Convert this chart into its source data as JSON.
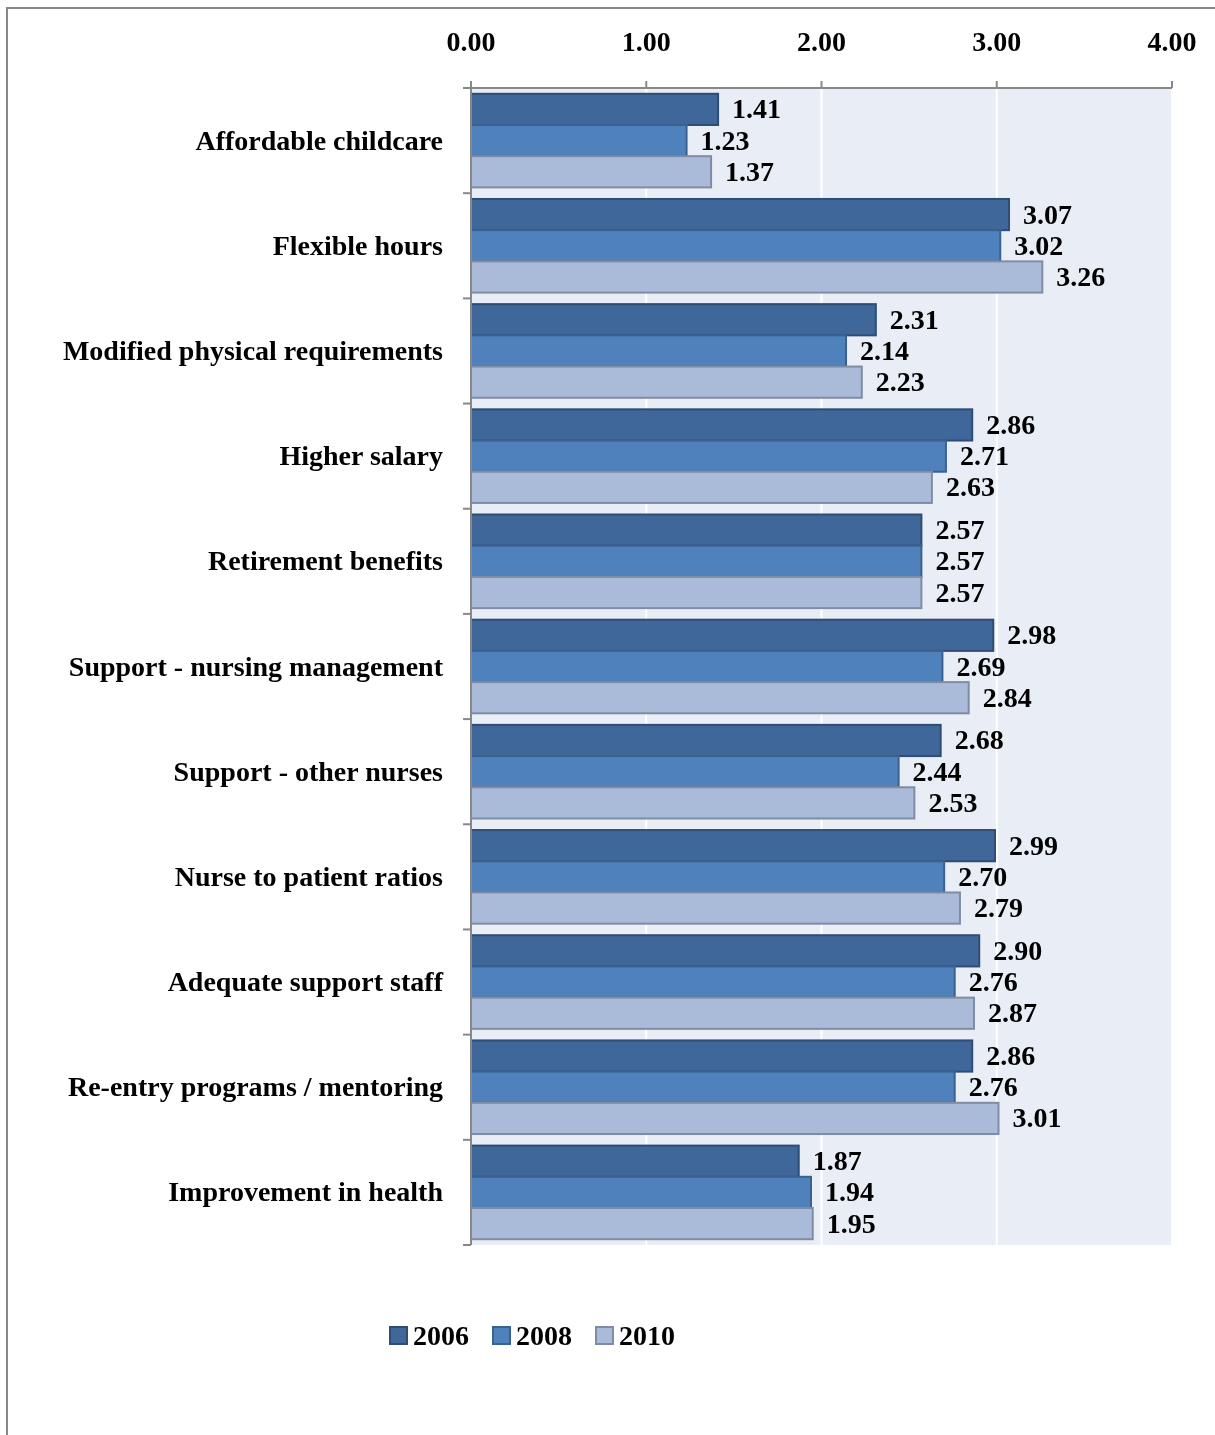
{
  "chart_data": {
    "type": "bar",
    "orientation": "horizontal",
    "categories": [
      "Affordable childcare",
      "Flexible hours",
      "Modified physical requirements",
      "Higher salary",
      "Retirement benefits",
      "Support - nursing management",
      "Support - other nurses",
      "Nurse to patient ratios",
      "Adequate support staff",
      "Re-entry programs / mentoring",
      "Improvement in health"
    ],
    "series": [
      {
        "name": "2006",
        "color": "#3f679a",
        "values": [
          1.41,
          3.07,
          2.31,
          2.86,
          2.57,
          2.98,
          2.68,
          2.99,
          2.9,
          2.86,
          1.87
        ],
        "value_labels": [
          "1.41",
          "3.07",
          "2.31",
          "2.86",
          "2.57",
          "2.98",
          "2.68",
          "2.99",
          "2.90",
          "2.86",
          "1.87"
        ]
      },
      {
        "name": "2008",
        "color": "#4f81bd",
        "values": [
          1.23,
          3.02,
          2.14,
          2.71,
          2.57,
          2.69,
          2.44,
          2.7,
          2.76,
          2.76,
          1.94
        ],
        "value_labels": [
          "1.23",
          "3.02",
          "2.14",
          "2.71",
          "2.57",
          "2.69",
          "2.44",
          "2.70",
          "2.76",
          "2.76",
          "1.94"
        ]
      },
      {
        "name": "2010",
        "color": "#aabad9",
        "values": [
          1.37,
          3.26,
          2.23,
          2.63,
          2.57,
          2.84,
          2.53,
          2.79,
          2.87,
          3.01,
          1.95
        ],
        "value_labels": [
          "1.37",
          "3.26",
          "2.23",
          "2.63",
          "2.57",
          "2.84",
          "2.53",
          "2.79",
          "2.87",
          "3.01",
          "1.95"
        ]
      }
    ],
    "xlim": [
      0,
      4
    ],
    "xticks": [
      {
        "value": 0,
        "label": "0.00"
      },
      {
        "value": 1,
        "label": "1.00"
      },
      {
        "value": 2,
        "label": "2.00"
      },
      {
        "value": 3,
        "label": "3.00"
      },
      {
        "value": 4,
        "label": "4.00"
      }
    ],
    "grid": "x",
    "legend": "bottom"
  }
}
